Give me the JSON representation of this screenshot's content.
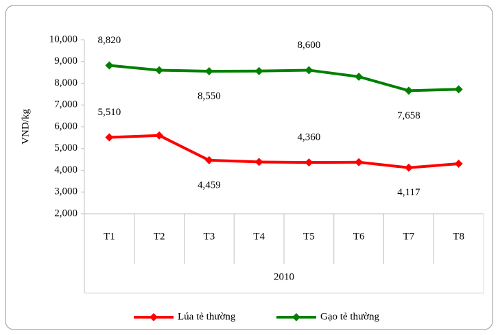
{
  "chart_data": {
    "type": "line",
    "y_label": "VND/kg",
    "x_group_label": "2010",
    "categories": [
      "T1",
      "T2",
      "T3",
      "T4",
      "T5",
      "T6",
      "T7",
      "T8"
    ],
    "series": [
      {
        "name": "Lúa tẻ thường",
        "color": "#ff0000",
        "values": [
          5510,
          5600,
          4459,
          4380,
          4360,
          4370,
          4117,
          4300
        ],
        "value_labels": [
          "5,510",
          null,
          "4,459",
          null,
          "4,360",
          null,
          "4,117",
          null
        ]
      },
      {
        "name": "Gạo tẻ thường",
        "color": "#008000",
        "values": [
          8820,
          8600,
          8550,
          8560,
          8600,
          8300,
          7658,
          7720
        ],
        "value_labels": [
          "8,820",
          null,
          "8,550",
          null,
          "8,600",
          null,
          "7,658",
          null
        ]
      }
    ],
    "ylim": [
      2000,
      10000
    ],
    "yticks": [
      {
        "value": 2000,
        "label": "2,000"
      },
      {
        "value": 3000,
        "label": "3,000"
      },
      {
        "value": 4000,
        "label": "4,000"
      },
      {
        "value": 5000,
        "label": "5,000"
      },
      {
        "value": 6000,
        "label": "6,000"
      },
      {
        "value": 7000,
        "label": "7,000"
      },
      {
        "value": 8000,
        "label": "8,000"
      },
      {
        "value": 9000,
        "label": "9,000"
      },
      {
        "value": 10000,
        "label": "10,000"
      }
    ],
    "legend": "bottom"
  }
}
